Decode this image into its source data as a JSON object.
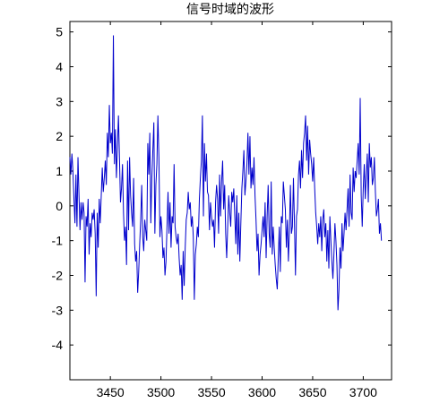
{
  "chart_data": {
    "type": "line",
    "title": "信号时域的波形",
    "xlabel": "",
    "ylabel": "",
    "xlim": [
      3410,
      3728
    ],
    "ylim": [
      -5,
      5.3
    ],
    "xticks": [
      3450,
      3500,
      3550,
      3600,
      3650,
      3700
    ],
    "xtick_labels": [
      "3450",
      "3500",
      "3550",
      "3600",
      "3650",
      "3700"
    ],
    "yticks": [
      5,
      4,
      3,
      2,
      1,
      0,
      -1,
      -2,
      -3,
      -4
    ],
    "ytick_labels": [
      "5",
      "4",
      "3",
      "2",
      "1",
      "0",
      "-1",
      "-2",
      "-3",
      "-4"
    ],
    "grid": false,
    "line_color": "#0000cc",
    "series": [
      {
        "x_start": 3410,
        "x_step": 1,
        "values": [
          1.4,
          0.9,
          1.5,
          1.0,
          0.2,
          -0.5,
          0.9,
          -0.6,
          1.4,
          0.3,
          -0.7,
          0.1,
          -0.4,
          0.1,
          -0.2,
          -2.2,
          -0.3,
          -0.6,
          0.2,
          -1.4,
          -0.5,
          -0.9,
          -0.2,
          -0.4,
          -0.1,
          -0.8,
          -2.6,
          -0.2,
          -1.2,
          0.2,
          -0.5,
          0.3,
          1.1,
          0.4,
          0.8,
          1.3,
          0.6,
          2.1,
          1.4,
          2.9,
          1.8,
          2.1,
          1.5,
          4.9,
          1.2,
          2.2,
          0.8,
          1.7,
          2.6,
          1.4,
          0.1,
          0.5,
          1.2,
          -0.2,
          -1.0,
          -0.6,
          -1.7,
          1.3,
          -0.7,
          1.4,
          0.3,
          -0.2,
          -0.6,
          0.8,
          -1.1,
          -1.6,
          -1.3,
          -2.5,
          -1.9,
          -1.1,
          -0.4,
          0.6,
          -0.9,
          -1.3,
          -0.4,
          -0.7,
          -1.0,
          1.8,
          0.9,
          2.1,
          -0.5,
          0.8,
          1.6,
          2.4,
          -0.8,
          0.6,
          1.2,
          2.6,
          1.4,
          -0.9,
          -0.3,
          -0.7,
          -1.5,
          -1.2,
          -2.0,
          -1.6,
          -0.6,
          0.4,
          -0.8,
          0.1,
          -1.2,
          -0.3,
          -0.5,
          1.2,
          -0.6,
          -0.9,
          -1.1,
          -0.8,
          -1.5,
          -2.0,
          -1.7,
          -2.7,
          -1.3,
          -2.3,
          -1.2,
          -0.4,
          -0.2,
          0.4,
          -0.1,
          0.1,
          -0.6,
          -0.3,
          -0.9,
          -2.7,
          -1.4,
          -1.1,
          -0.6,
          -0.9,
          0.2,
          0.8,
          1.3,
          2.6,
          -0.3,
          1.8,
          0.7,
          1.5,
          0.4,
          0.3,
          -0.7,
          0.1,
          -0.3,
          -0.6,
          -0.4,
          -1.2,
          0.1,
          0.6,
          0.2,
          -0.8,
          0.9,
          -0.3,
          0.7,
          1.3,
          -0.1,
          0.6,
          -0.8,
          -1.5,
          -0.6,
          0.3,
          -0.2,
          -0.6,
          0.4,
          0.1,
          0.5,
          -0.3,
          -1.1,
          0.3,
          -1.4,
          -0.2,
          -1.6,
          -0.5,
          0.5,
          1.0,
          1.6,
          0.3,
          0.7,
          1.2,
          2.1,
          0.9,
          2.0,
          0.5,
          1.1,
          0.6,
          1.4,
          0.3,
          -0.4,
          -1.3,
          -0.8,
          -2.0,
          -1.4,
          -1.1,
          -0.7,
          -0.3,
          -0.9,
          0.1,
          -1.5,
          -0.3,
          0.6,
          -0.8,
          -1.2,
          0.7,
          -1.4,
          -0.6,
          -1.2,
          -1.7,
          -2.1,
          -2.4,
          -1.5,
          -0.6,
          -1.9,
          -0.3,
          -0.5,
          0.7,
          0.3,
          -0.1,
          -1.2,
          -0.4,
          -1.6,
          -0.7,
          0.6,
          -0.8,
          -0.6,
          0.8,
          -0.5,
          -2.0,
          -0.3,
          -0.1,
          0.9,
          1.3,
          0.5,
          1.6,
          0.8,
          1.8,
          2.1,
          2.6,
          1.3,
          2.3,
          0.9,
          1.9,
          1.5,
          1.2,
          0.7,
          1.4,
          0.5,
          -0.2,
          -0.6,
          -1.1,
          -0.5,
          -0.9,
          -0.3,
          -1.3,
          -0.4,
          -0.1,
          -0.9,
          -0.5,
          -1.6,
          -0.7,
          -1.8,
          -0.3,
          -1.0,
          -1.6,
          -2.1,
          -1.4,
          -0.5,
          -1.0,
          -1.7,
          -3.0,
          -2.4,
          -1.2,
          -1.8,
          -0.5,
          -1.3,
          -0.8,
          -0.2,
          -0.7,
          -0.1,
          0.5,
          -0.6,
          0.9,
          -0.2,
          -0.4,
          1.1,
          0.4,
          1.0,
          0.8,
          1.3,
          1.8,
          0.9,
          3.1,
          0.3,
          -0.6,
          0.5,
          1.2,
          0.2,
          0.9,
          1.5,
          0.1,
          1.8,
          1.1,
          1.4,
          0.6,
          0.8,
          1.4,
          0.4,
          -0.3,
          -0.1,
          0.2,
          -0.8,
          -0.5,
          -1.0
        ]
      }
    ]
  }
}
